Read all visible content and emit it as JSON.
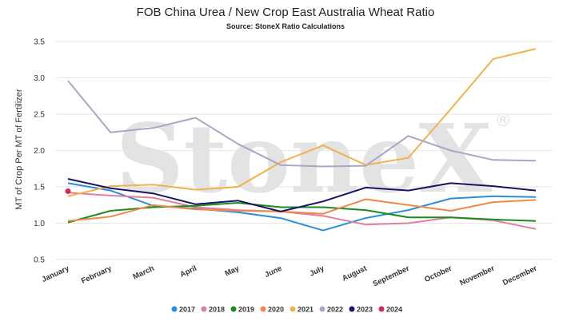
{
  "chart_data": {
    "type": "line",
    "title": "FOB China Urea / New Crop East Australia Wheat Ratio",
    "subtitle": "Source: StoneX Ratio Calculations",
    "ylabel": "MT of Crop Per MT of Fertilizer",
    "xlabel": "",
    "watermark": "StoneX",
    "ylim": [
      0.5,
      3.5
    ],
    "yticks": [
      "0.5",
      "1.0",
      "1.5",
      "2.0",
      "2.5",
      "3.0",
      "3.5"
    ],
    "grid": true,
    "legend_position": "bottom",
    "categories": [
      "January",
      "February",
      "March",
      "April",
      "May",
      "June",
      "July",
      "August",
      "September",
      "October",
      "November",
      "December"
    ],
    "series": [
      {
        "name": "2017",
        "color": "#2b8de0",
        "values": [
          1.55,
          1.45,
          1.24,
          1.2,
          1.15,
          1.07,
          0.9,
          1.07,
          1.18,
          1.34,
          1.37,
          1.36
        ]
      },
      {
        "name": "2018",
        "color": "#e0809c",
        "values": [
          1.42,
          1.38,
          1.35,
          1.22,
          1.18,
          1.16,
          1.1,
          0.98,
          1.0,
          1.08,
          1.04,
          0.92
        ]
      },
      {
        "name": "2019",
        "color": "#1a8c1a",
        "values": [
          1.01,
          1.17,
          1.22,
          1.24,
          1.28,
          1.22,
          1.22,
          1.18,
          1.08,
          1.08,
          1.05,
          1.03
        ]
      },
      {
        "name": "2020",
        "color": "#f08848",
        "values": [
          1.03,
          1.09,
          1.25,
          1.19,
          1.17,
          1.16,
          1.13,
          1.33,
          1.25,
          1.17,
          1.29,
          1.32
        ]
      },
      {
        "name": "2021",
        "color": "#f3b14b",
        "values": [
          1.37,
          1.51,
          1.53,
          1.46,
          1.5,
          1.84,
          2.07,
          1.8,
          1.9,
          2.57,
          3.26,
          3.4
        ]
      },
      {
        "name": "2022",
        "color": "#a7a7c6",
        "values": [
          2.96,
          2.25,
          2.31,
          2.45,
          2.09,
          1.8,
          1.78,
          1.79,
          2.2,
          2.0,
          1.87,
          1.86
        ]
      },
      {
        "name": "2023",
        "color": "#15156b",
        "values": [
          1.61,
          1.48,
          1.41,
          1.26,
          1.31,
          1.16,
          1.3,
          1.49,
          1.45,
          1.55,
          1.51,
          1.45
        ]
      },
      {
        "name": "2024",
        "color": "#d7265b",
        "values": [
          1.44,
          null,
          null,
          null,
          null,
          null,
          null,
          null,
          null,
          null,
          null,
          null
        ]
      }
    ]
  }
}
